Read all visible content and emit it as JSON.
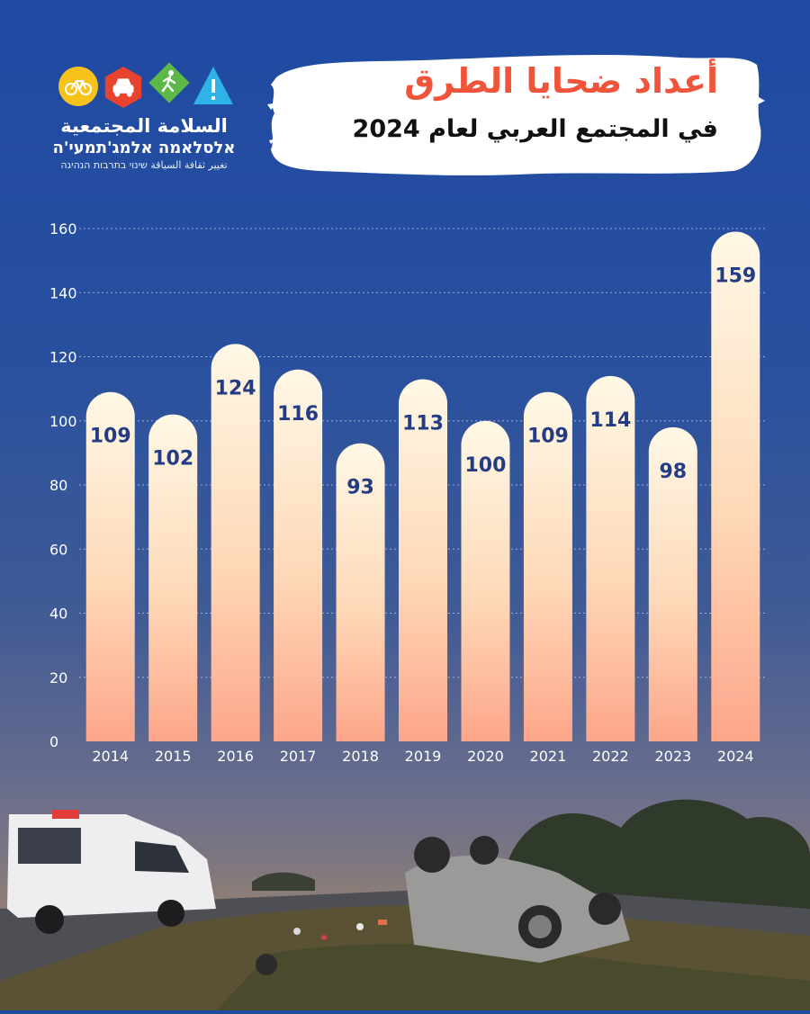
{
  "logo": {
    "name_ar": "السلامة المجتمعية",
    "name_he": "אלסלאמה אלמג'תמעי'ה",
    "tagline": "تغيير ثقافة السياقة שינוי בתרבות הנהיגה",
    "icons": [
      "bicycle-icon",
      "car-icon",
      "pedestrian-icon",
      "warning-icon"
    ],
    "icon_colors": [
      "#f7c21a",
      "#e8432e",
      "#5cb947",
      "#2fb3e6"
    ]
  },
  "header": {
    "title": "أعداد ضحايا الطرق",
    "subtitle": "في المجتمع العربي لعام 2024"
  },
  "colors": {
    "title_accent": "#f0543a",
    "bar_top": "#fff7e2",
    "bar_bottom": "#fda98a",
    "value_label": "#233c84"
  },
  "chart_data": {
    "type": "bar",
    "categories": [
      "2014",
      "2015",
      "2016",
      "2017",
      "2018",
      "2019",
      "2020",
      "2021",
      "2022",
      "2023",
      "2024"
    ],
    "values": [
      109,
      102,
      124,
      116,
      93,
      113,
      100,
      109,
      114,
      98,
      159
    ],
    "ylim": [
      0,
      160
    ],
    "yticks": [
      0,
      20,
      40,
      60,
      80,
      100,
      120,
      140,
      160
    ],
    "grid": true,
    "data_labels": true
  }
}
